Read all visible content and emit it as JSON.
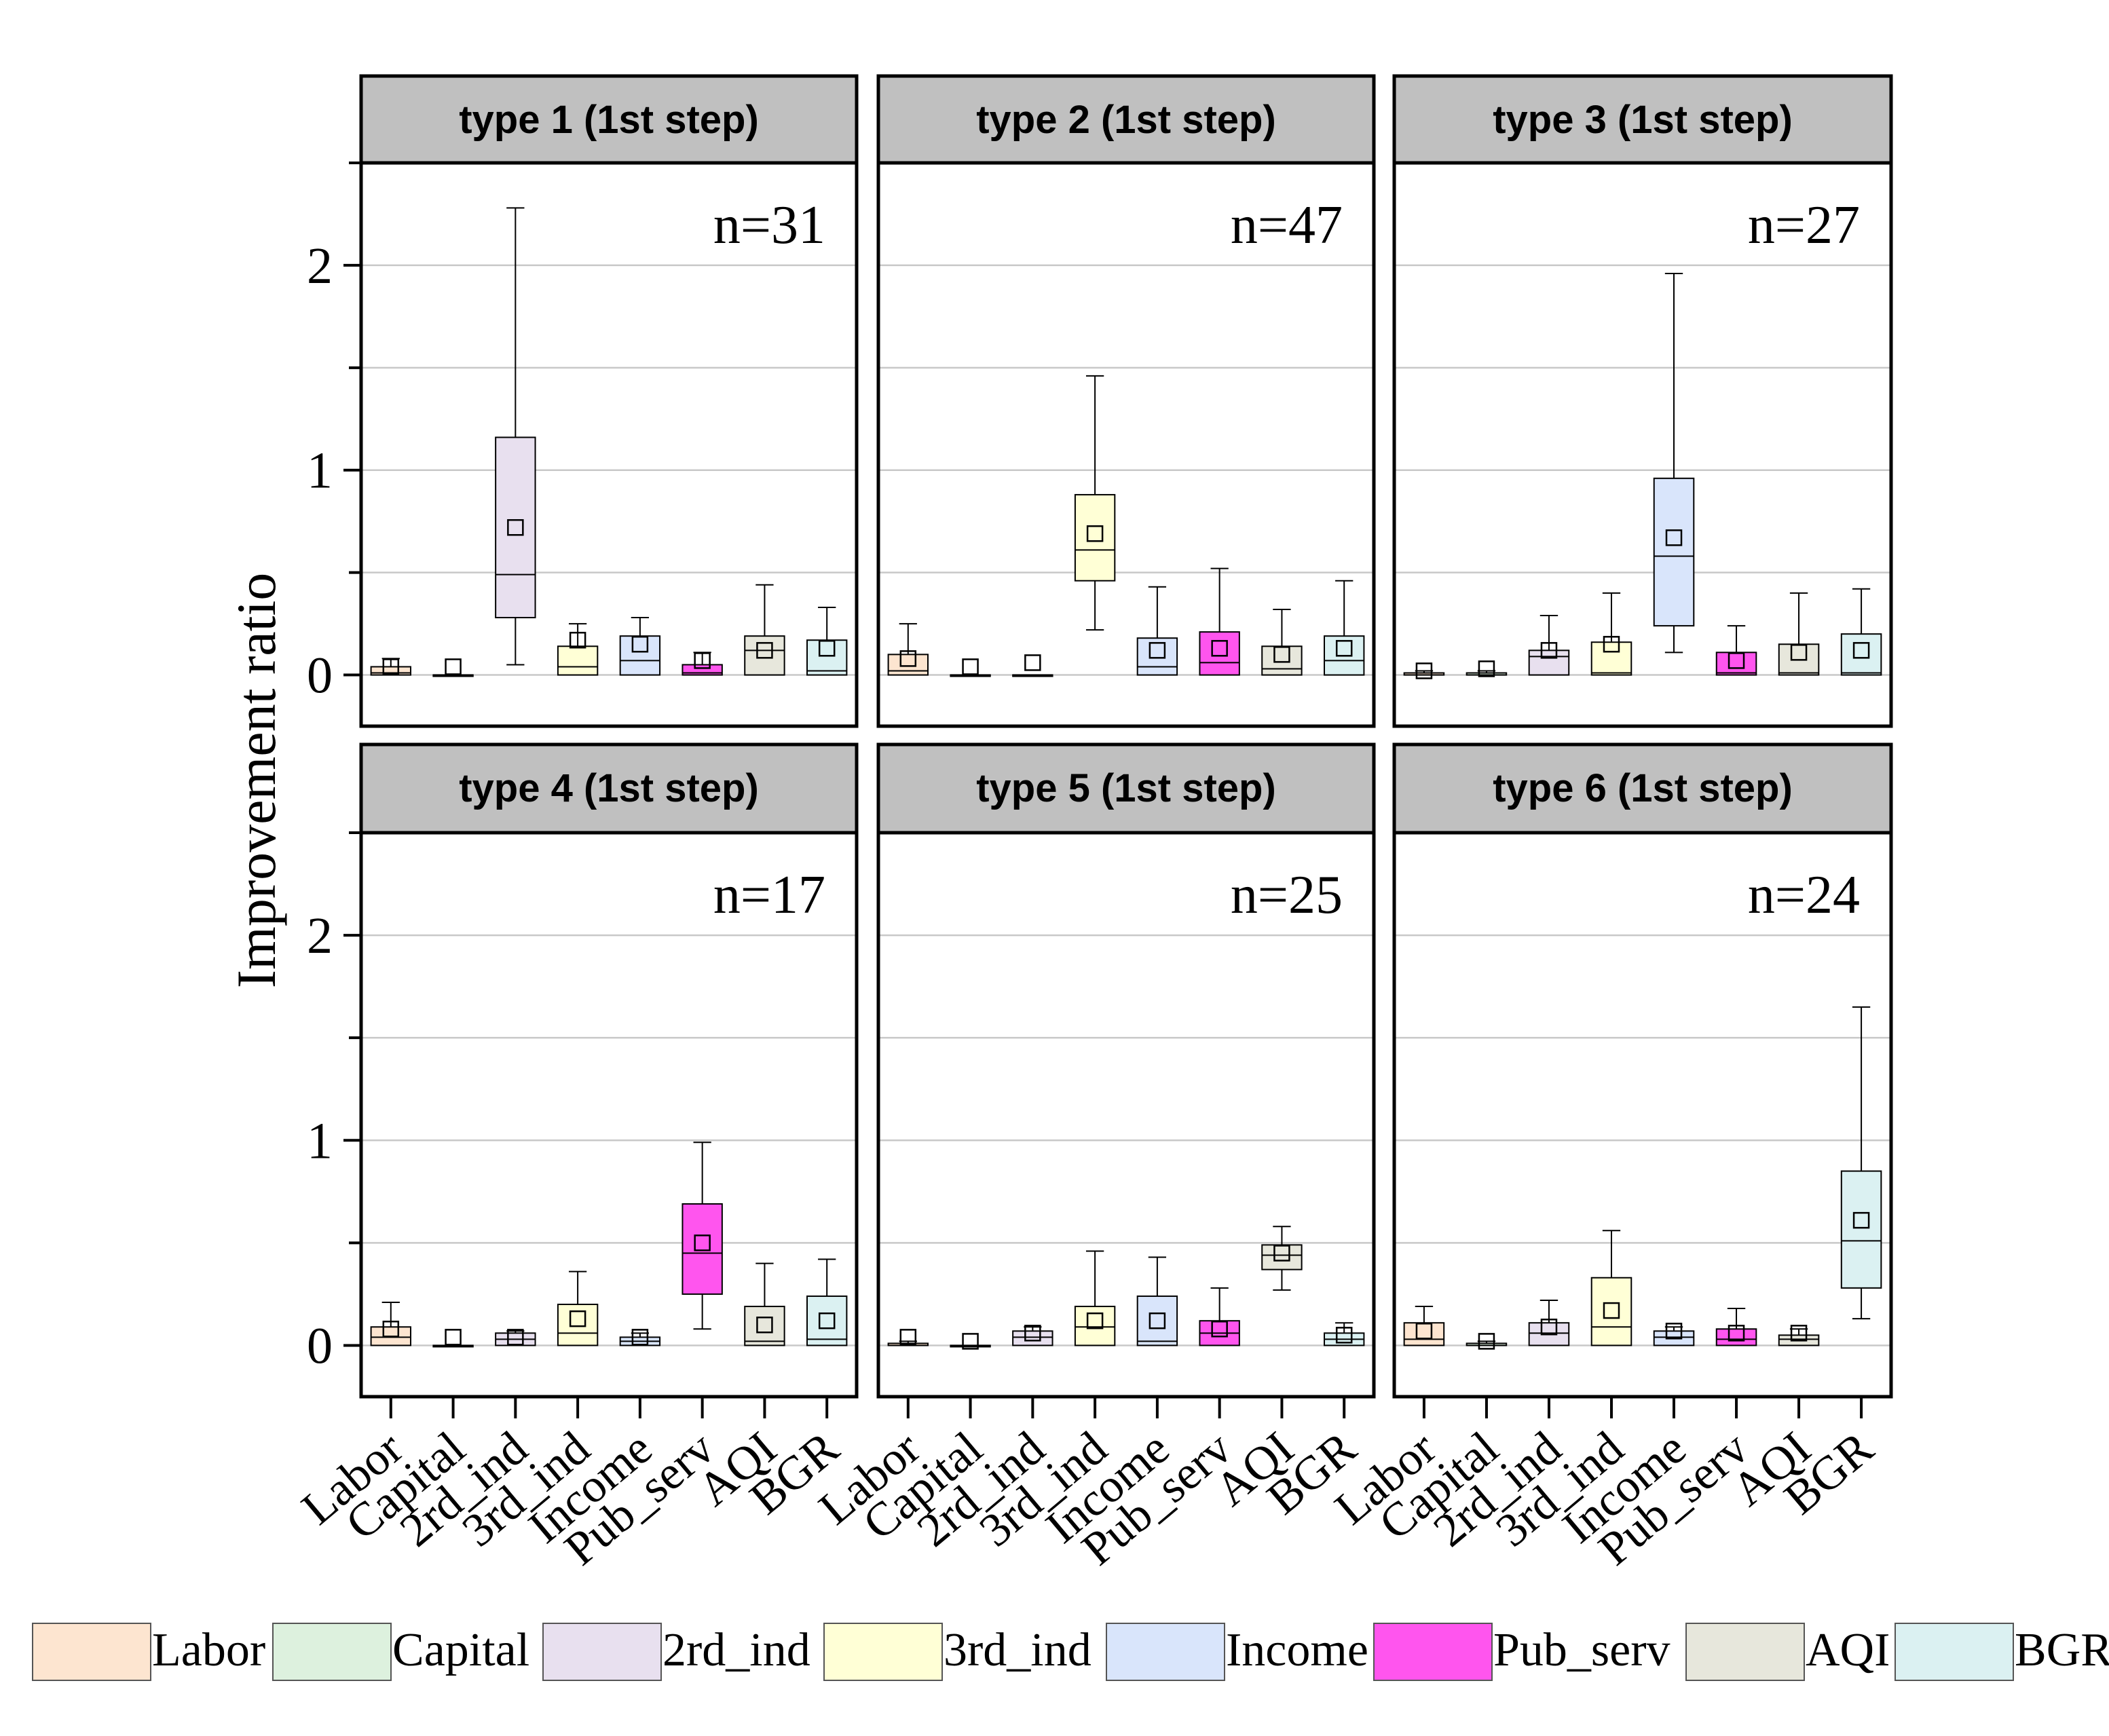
{
  "chart_data": {
    "type": "box",
    "ylabel": "Improvement ratio",
    "ylim": [
      -0.25,
      2.5
    ],
    "yticks": [
      0,
      1,
      2
    ],
    "categories": [
      "Labor",
      "Capital",
      "2rd_ind",
      "3rd_ind",
      "Income",
      "Pub_serv",
      "AQI",
      "BGR"
    ],
    "colors": {
      "Labor": "#FDE5D0",
      "Capital": "#DDF1DE",
      "2rd_ind": "#E8E0EF",
      "3rd_ind": "#FFFFD6",
      "Income": "#D9E5FB",
      "Pub_serv": "#FF55EE",
      "AQI": "#E7E7DC",
      "BGR": "#DBF1F2"
    },
    "legend": [
      "Labor",
      "Capital",
      "2rd_ind",
      "3rd_ind",
      "Income",
      "Pub_serv",
      "AQI",
      "BGR"
    ],
    "panels": [
      {
        "title": "type 1 (1st step)",
        "n_label": "n=31",
        "boxes": [
          {
            "min": 0,
            "q1": 0,
            "median": 0.01,
            "q3": 0.04,
            "max": 0.08,
            "mean": 0.04
          },
          {
            "min": 0,
            "q1": 0,
            "median": 0,
            "q3": 0,
            "max": 0,
            "mean": 0.04
          },
          {
            "min": 0.05,
            "q1": 0.28,
            "median": 0.49,
            "q3": 1.16,
            "max": 2.28,
            "mean": 0.72
          },
          {
            "min": 0,
            "q1": 0,
            "median": 0.04,
            "q3": 0.14,
            "max": 0.25,
            "mean": 0.17
          },
          {
            "min": 0,
            "q1": 0,
            "median": 0.07,
            "q3": 0.19,
            "max": 0.28,
            "mean": 0.15
          },
          {
            "min": 0,
            "q1": 0,
            "median": 0.01,
            "q3": 0.05,
            "max": 0.11,
            "mean": 0.07
          },
          {
            "min": 0,
            "q1": 0,
            "median": 0.12,
            "q3": 0.19,
            "max": 0.44,
            "mean": 0.12
          },
          {
            "min": 0,
            "q1": 0,
            "median": 0.02,
            "q3": 0.17,
            "max": 0.33,
            "mean": 0.13
          }
        ]
      },
      {
        "title": "type 2 (1st step)",
        "n_label": "n=47",
        "boxes": [
          {
            "min": 0,
            "q1": 0,
            "median": 0.02,
            "q3": 0.1,
            "max": 0.25,
            "mean": 0.08
          },
          {
            "min": 0,
            "q1": 0,
            "median": 0,
            "q3": 0,
            "max": 0,
            "mean": 0.04
          },
          {
            "min": 0,
            "q1": 0,
            "median": 0,
            "q3": 0,
            "max": 0,
            "mean": 0.06
          },
          {
            "min": 0.22,
            "q1": 0.46,
            "median": 0.61,
            "q3": 0.88,
            "max": 1.46,
            "mean": 0.69
          },
          {
            "min": 0,
            "q1": 0,
            "median": 0.04,
            "q3": 0.18,
            "max": 0.43,
            "mean": 0.12
          },
          {
            "min": 0,
            "q1": 0,
            "median": 0.06,
            "q3": 0.21,
            "max": 0.52,
            "mean": 0.13
          },
          {
            "min": 0,
            "q1": 0,
            "median": 0.03,
            "q3": 0.14,
            "max": 0.32,
            "mean": 0.1
          },
          {
            "min": 0,
            "q1": 0,
            "median": 0.07,
            "q3": 0.19,
            "max": 0.46,
            "mean": 0.13
          }
        ]
      },
      {
        "title": "type 3 (1st step)",
        "n_label": "n=27",
        "boxes": [
          {
            "min": 0,
            "q1": 0,
            "median": 0,
            "q3": 0.01,
            "max": 0.02,
            "mean": 0.02
          },
          {
            "min": 0,
            "q1": 0,
            "median": 0,
            "q3": 0.01,
            "max": 0.02,
            "mean": 0.03
          },
          {
            "min": 0,
            "q1": 0,
            "median": 0.09,
            "q3": 0.12,
            "max": 0.29,
            "mean": 0.12
          },
          {
            "min": 0,
            "q1": 0,
            "median": 0.01,
            "q3": 0.16,
            "max": 0.4,
            "mean": 0.15
          },
          {
            "min": 0.11,
            "q1": 0.24,
            "median": 0.58,
            "q3": 0.96,
            "max": 1.96,
            "mean": 0.67
          },
          {
            "min": 0,
            "q1": 0,
            "median": 0.01,
            "q3": 0.11,
            "max": 0.24,
            "mean": 0.07
          },
          {
            "min": 0,
            "q1": 0,
            "median": 0.01,
            "q3": 0.15,
            "max": 0.4,
            "mean": 0.11
          },
          {
            "min": 0,
            "q1": 0,
            "median": 0.01,
            "q3": 0.2,
            "max": 0.42,
            "mean": 0.12
          }
        ]
      },
      {
        "title": "type 4 (1st step)",
        "n_label": "n=17",
        "boxes": [
          {
            "min": 0,
            "q1": 0,
            "median": 0.04,
            "q3": 0.09,
            "max": 0.21,
            "mean": 0.08
          },
          {
            "min": 0,
            "q1": 0,
            "median": 0,
            "q3": 0,
            "max": 0,
            "mean": 0.04
          },
          {
            "min": 0,
            "q1": 0,
            "median": 0.03,
            "q3": 0.06,
            "max": 0.07,
            "mean": 0.04
          },
          {
            "min": 0,
            "q1": 0,
            "median": 0.06,
            "q3": 0.2,
            "max": 0.36,
            "mean": 0.13
          },
          {
            "min": 0,
            "q1": 0,
            "median": 0.02,
            "q3": 0.04,
            "max": 0.06,
            "mean": 0.04
          },
          {
            "min": 0.08,
            "q1": 0.25,
            "median": 0.45,
            "q3": 0.69,
            "max": 0.99,
            "mean": 0.5
          },
          {
            "min": 0,
            "q1": 0,
            "median": 0.02,
            "q3": 0.19,
            "max": 0.4,
            "mean": 0.1
          },
          {
            "min": 0,
            "q1": 0,
            "median": 0.03,
            "q3": 0.24,
            "max": 0.42,
            "mean": 0.12
          }
        ]
      },
      {
        "title": "type 5 (1st step)",
        "n_label": "n=25",
        "boxes": [
          {
            "min": 0,
            "q1": 0,
            "median": 0,
            "q3": 0.01,
            "max": 0.02,
            "mean": 0.04
          },
          {
            "min": 0,
            "q1": 0,
            "median": 0,
            "q3": 0,
            "max": 0,
            "mean": 0.02
          },
          {
            "min": 0,
            "q1": 0,
            "median": 0.04,
            "q3": 0.07,
            "max": 0.09,
            "mean": 0.06
          },
          {
            "min": 0,
            "q1": 0,
            "median": 0.09,
            "q3": 0.19,
            "max": 0.46,
            "mean": 0.12
          },
          {
            "min": 0,
            "q1": 0,
            "median": 0.02,
            "q3": 0.24,
            "max": 0.43,
            "mean": 0.12
          },
          {
            "min": 0,
            "q1": 0,
            "median": 0.06,
            "q3": 0.12,
            "max": 0.28,
            "mean": 0.08
          },
          {
            "min": 0.27,
            "q1": 0.37,
            "median": 0.44,
            "q3": 0.49,
            "max": 0.58,
            "mean": 0.45
          },
          {
            "min": 0,
            "q1": 0,
            "median": 0.03,
            "q3": 0.06,
            "max": 0.11,
            "mean": 0.05
          }
        ]
      },
      {
        "title": "type 6 (1st step)",
        "n_label": "n=24",
        "boxes": [
          {
            "min": 0,
            "q1": 0,
            "median": 0.03,
            "q3": 0.11,
            "max": 0.19,
            "mean": 0.07
          },
          {
            "min": 0,
            "q1": 0,
            "median": 0,
            "q3": 0.01,
            "max": 0.02,
            "mean": 0.02
          },
          {
            "min": 0,
            "q1": 0,
            "median": 0.06,
            "q3": 0.11,
            "max": 0.22,
            "mean": 0.09
          },
          {
            "min": 0,
            "q1": 0,
            "median": 0.09,
            "q3": 0.33,
            "max": 0.56,
            "mean": 0.17
          },
          {
            "min": 0,
            "q1": 0,
            "median": 0.04,
            "q3": 0.07,
            "max": 0.09,
            "mean": 0.07
          },
          {
            "min": 0,
            "q1": 0,
            "median": 0.03,
            "q3": 0.08,
            "max": 0.18,
            "mean": 0.06
          },
          {
            "min": 0,
            "q1": 0,
            "median": 0.03,
            "q3": 0.05,
            "max": 0.08,
            "mean": 0.06
          },
          {
            "min": 0.13,
            "q1": 0.28,
            "median": 0.51,
            "q3": 0.85,
            "max": 1.65,
            "mean": 0.61
          }
        ]
      }
    ]
  }
}
